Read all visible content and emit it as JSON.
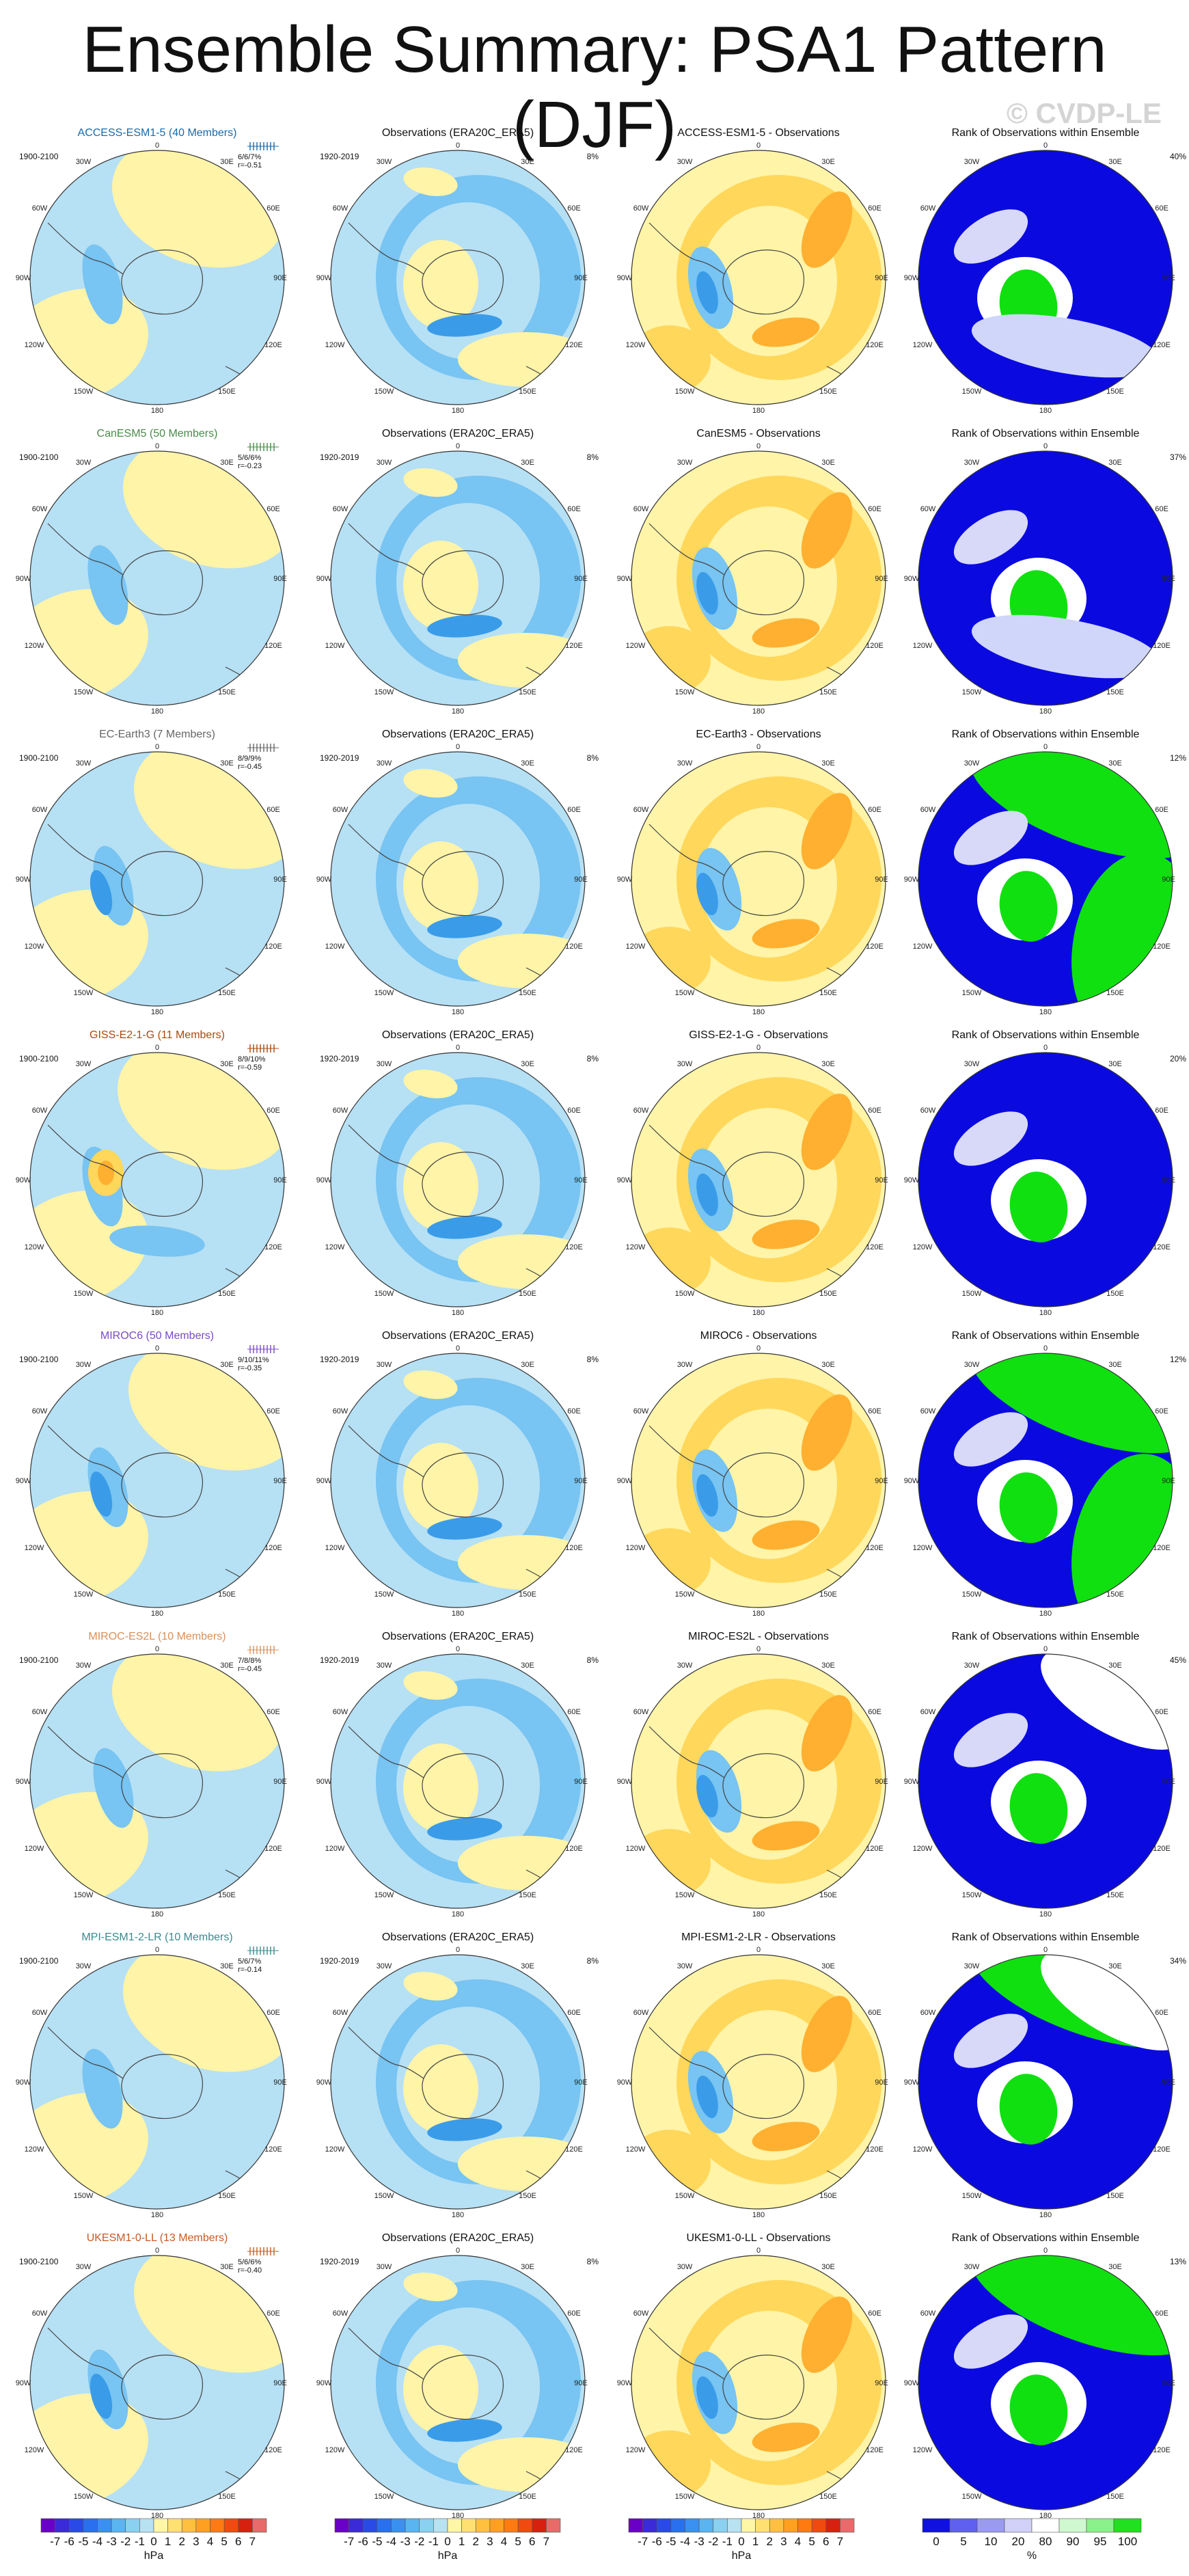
{
  "title": "Ensemble Summary: PSA1 Pattern (DJF)",
  "watermark": "© CVDP-LE",
  "obs_title": "Observations (ERA20C_ERA5)",
  "rank_title": "Rank of Observations within Ensemble",
  "obs_years": "1920-2019",
  "model_years": "1900-2100",
  "obs_pct": "8%",
  "lon_labels": {
    "top": "0",
    "bottom": "180",
    "l1": "30W",
    "l2": "60W",
    "l3": "90W",
    "l4": "120W",
    "l5": "150W",
    "r1": "30E",
    "r2": "60E",
    "r3": "90E",
    "r4": "120E",
    "r5": "150E"
  },
  "rows": [
    {
      "model": "ACCESS-ESM1-5 (40 Members)",
      "diff": "ACCESS-ESM1-5 - Observations",
      "stat1": "6/6/7%",
      "stat2": "r=-0.51",
      "rank_pct": "40%",
      "color": "#1a6aa8"
    },
    {
      "model": "CanESM5 (50 Members)",
      "diff": "CanESM5 - Observations",
      "stat1": "5/6/6%",
      "stat2": "r=-0.23",
      "rank_pct": "37%",
      "color": "#4a8a4a"
    },
    {
      "model": "EC-Earth3 (7 Members)",
      "diff": "EC-Earth3 - Observations",
      "stat1": "8/9/9%",
      "stat2": "r=-0.45",
      "rank_pct": "12%",
      "color": "#666666"
    },
    {
      "model": "GISS-E2-1-G (11 Members)",
      "diff": "GISS-E2-1-G - Observations",
      "stat1": "8/9/10%",
      "stat2": "r=-0.59",
      "rank_pct": "20%",
      "color": "#a84a10"
    },
    {
      "model": "MIROC6 (50 Members)",
      "diff": "MIROC6 - Observations",
      "stat1": "9/10/11%",
      "stat2": "r=-0.35",
      "rank_pct": "12%",
      "color": "#7a4ac8"
    },
    {
      "model": "MIROC-ES2L (10 Members)",
      "diff": "MIROC-ES2L - Observations",
      "stat1": "7/8/8%",
      "stat2": "r=-0.45",
      "rank_pct": "45%",
      "color": "#d8905a"
    },
    {
      "model": "MPI-ESM1-2-LR (10 Members)",
      "diff": "MPI-ESM1-2-LR - Observations",
      "stat1": "5/6/7%",
      "stat2": "r=-0.14",
      "rank_pct": "34%",
      "color": "#3a8a90"
    },
    {
      "model": "UKESM1-0-LL (13 Members)",
      "diff": "UKESM1-0-LL - Observations",
      "stat1": "5/6/6%",
      "stat2": "r=-0.40",
      "rank_pct": "13%",
      "color": "#c85a20"
    }
  ],
  "colorbar_hpa": {
    "ticks": [
      "-7",
      "-6",
      "-5",
      "-4",
      "-3",
      "-2",
      "-1",
      "0",
      "1",
      "2",
      "3",
      "4",
      "5",
      "6",
      "7"
    ],
    "unit": "hPa",
    "colors": [
      "#6a00c8",
      "#3a2ad8",
      "#2a4ae8",
      "#2a6ff0",
      "#3a90f0",
      "#5ab4f0",
      "#8ad0f0",
      "#b8e2f2",
      "#fff6a8",
      "#ffe070",
      "#ffc040",
      "#ffa020",
      "#ff7a10",
      "#f04a10",
      "#d82010",
      "#e86a6a"
    ]
  },
  "colorbar_rank": {
    "ticks": [
      "0",
      "5",
      "10",
      "20",
      "80",
      "90",
      "95",
      "100"
    ],
    "unit": "%",
    "colors": [
      "#1010e0",
      "#6060f0",
      "#9a9af0",
      "#d0d0f8",
      "#ffffff",
      "#d0f8d0",
      "#8af08a",
      "#20e020"
    ]
  },
  "colors": {
    "blue_light": "#b6e0f4",
    "blue_mid": "#78c4f2",
    "blue_dark": "#3a9ce8",
    "yellow_light": "#fff4a8",
    "yellow_mid": "#ffd75a",
    "orange": "#ffb030",
    "rank_blue": "#0a0ae0",
    "rank_green": "#10e010"
  }
}
